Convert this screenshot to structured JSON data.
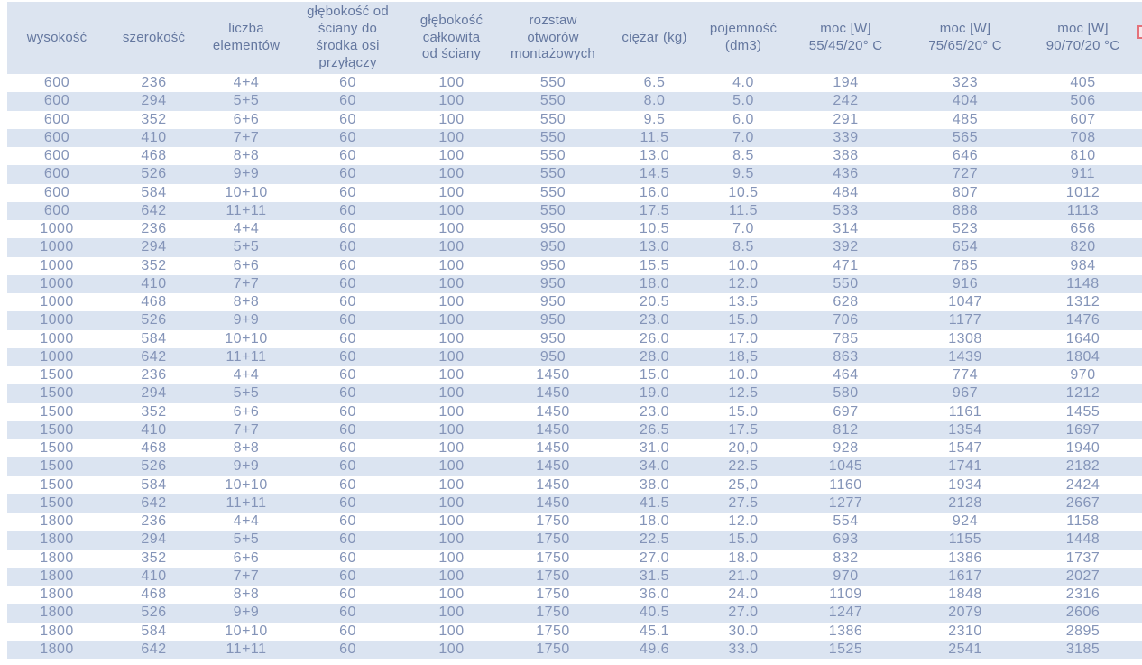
{
  "table": {
    "columns": [
      "wysokość",
      "szerokość",
      "liczba\nelementów",
      "głębokość od\nściany do\nśrodka osi\nprzyłączy",
      "głębokość\ncałkowita\nod ściany",
      "rozstaw\notworów\nmontażowych",
      "ciężar (kg)",
      "pojemność\n(dm3)",
      "moc [W]\n55/45/20° C",
      "moc [W]\n75/65/20° C",
      "moc [W]\n90/70/20 °C"
    ],
    "rows": [
      [
        "600",
        "236",
        "4+4",
        "60",
        "100",
        "550",
        "6.5",
        "4.0",
        "194",
        "323",
        "405"
      ],
      [
        "600",
        "294",
        "5+5",
        "60",
        "100",
        "550",
        "8.0",
        "5.0",
        "242",
        "404",
        "506"
      ],
      [
        "600",
        "352",
        "6+6",
        "60",
        "100",
        "550",
        "9.5",
        "6.0",
        "291",
        "485",
        "607"
      ],
      [
        "600",
        "410",
        "7+7",
        "60",
        "100",
        "550",
        "11.5",
        "7.0",
        "339",
        "565",
        "708"
      ],
      [
        "600",
        "468",
        "8+8",
        "60",
        "100",
        "550",
        "13.0",
        "8.5",
        "388",
        "646",
        "810"
      ],
      [
        "600",
        "526",
        "9+9",
        "60",
        "100",
        "550",
        "14.5",
        "9.5",
        "436",
        "727",
        "911"
      ],
      [
        "600",
        "584",
        "10+10",
        "60",
        "100",
        "550",
        "16.0",
        "10.5",
        "484",
        "807",
        "1012"
      ],
      [
        "600",
        "642",
        "11+11",
        "60",
        "100",
        "550",
        "17.5",
        "11.5",
        "533",
        "888",
        "1113"
      ],
      [
        "1000",
        "236",
        "4+4",
        "60",
        "100",
        "950",
        "10.5",
        "7.0",
        "314",
        "523",
        "656"
      ],
      [
        "1000",
        "294",
        "5+5",
        "60",
        "100",
        "950",
        "13.0",
        "8.5",
        "392",
        "654",
        "820"
      ],
      [
        "1000",
        "352",
        "6+6",
        "60",
        "100",
        "950",
        "15.5",
        "10.0",
        "471",
        "785",
        "984"
      ],
      [
        "1000",
        "410",
        "7+7",
        "60",
        "100",
        "950",
        "18.0",
        "12.0",
        "550",
        "916",
        "1148"
      ],
      [
        "1000",
        "468",
        "8+8",
        "60",
        "100",
        "950",
        "20.5",
        "13.5",
        "628",
        "1047",
        "1312"
      ],
      [
        "1000",
        "526",
        "9+9",
        "60",
        "100",
        "950",
        "23.0",
        "15.0",
        "706",
        "1177",
        "1476"
      ],
      [
        "1000",
        "584",
        "10+10",
        "60",
        "100",
        "950",
        "26.0",
        "17.0",
        "785",
        "1308",
        "1640"
      ],
      [
        "1000",
        "642",
        "11+11",
        "60",
        "100",
        "950",
        "28.0",
        "18,5",
        "863",
        "1439",
        "1804"
      ],
      [
        "1500",
        "236",
        "4+4",
        "60",
        "100",
        "1450",
        "15.0",
        "10.0",
        "464",
        "774",
        "970"
      ],
      [
        "1500",
        "294",
        "5+5",
        "60",
        "100",
        "1450",
        "19.0",
        "12.5",
        "580",
        "967",
        "1212"
      ],
      [
        "1500",
        "352",
        "6+6",
        "60",
        "100",
        "1450",
        "23.0",
        "15.0",
        "697",
        "1161",
        "1455"
      ],
      [
        "1500",
        "410",
        "7+7",
        "60",
        "100",
        "1450",
        "26.5",
        "17.5",
        "812",
        "1354",
        "1697"
      ],
      [
        "1500",
        "468",
        "8+8",
        "60",
        "100",
        "1450",
        "31.0",
        "20,0",
        "928",
        "1547",
        "1940"
      ],
      [
        "1500",
        "526",
        "9+9",
        "60",
        "100",
        "1450",
        "34.0",
        "22.5",
        "1045",
        "1741",
        "2182"
      ],
      [
        "1500",
        "584",
        "10+10",
        "60",
        "100",
        "1450",
        "38.0",
        "25,0",
        "1160",
        "1934",
        "2424"
      ],
      [
        "1500",
        "642",
        "11+11",
        "60",
        "100",
        "1450",
        "41.5",
        "27.5",
        "1277",
        "2128",
        "2667"
      ],
      [
        "1800",
        "236",
        "4+4",
        "60",
        "100",
        "1750",
        "18.0",
        "12.0",
        "554",
        "924",
        "1158"
      ],
      [
        "1800",
        "294",
        "5+5",
        "60",
        "100",
        "1750",
        "22.5",
        "15.0",
        "693",
        "1155",
        "1448"
      ],
      [
        "1800",
        "352",
        "6+6",
        "60",
        "100",
        "1750",
        "27.0",
        "18.0",
        "832",
        "1386",
        "1737"
      ],
      [
        "1800",
        "410",
        "7+7",
        "60",
        "100",
        "1750",
        "31.5",
        "21.0",
        "970",
        "1617",
        "2027"
      ],
      [
        "1800",
        "468",
        "8+8",
        "60",
        "100",
        "1750",
        "36.0",
        "24.0",
        "1109",
        "1848",
        "2316"
      ],
      [
        "1800",
        "526",
        "9+9",
        "60",
        "100",
        "1750",
        "40.5",
        "27.0",
        "1247",
        "2079",
        "2606"
      ],
      [
        "1800",
        "584",
        "10+10",
        "60",
        "100",
        "1750",
        "45.1",
        "30.0",
        "1386",
        "2310",
        "2895"
      ],
      [
        "1800",
        "642",
        "11+11",
        "60",
        "100",
        "1750",
        "49.6",
        "33.0",
        "1525",
        "2541",
        "3185"
      ]
    ]
  },
  "colors": {
    "header_bg": "#dce4f0",
    "stripe_bg": "#dbe4f1",
    "header_text": "#64779f",
    "cell_text": "#8494b8",
    "accent_red": "#e4717a"
  }
}
